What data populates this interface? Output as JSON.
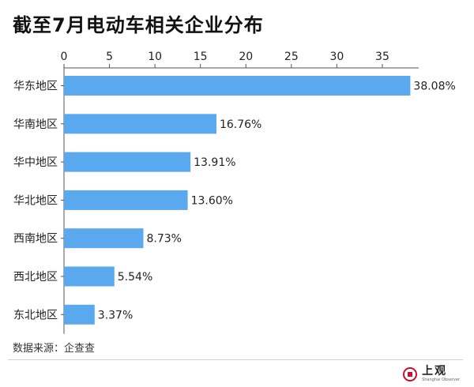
{
  "title": "截至7月电动车相关企业分布",
  "source": "数据来源：企查查",
  "brand": {
    "name": "上观",
    "sub": "Shanghai Observer"
  },
  "colors": {
    "bar": "#5aa9ef",
    "axis": "#555555",
    "text": "#222222",
    "brand": "#c8102e"
  },
  "chart_data": {
    "type": "bar",
    "orientation": "horizontal",
    "x_axis_position": "top",
    "categories": [
      "华东地区",
      "华南地区",
      "华中地区",
      "华北地区",
      "西南地区",
      "西北地区",
      "东北地区"
    ],
    "values": [
      38.08,
      16.76,
      13.91,
      13.6,
      8.73,
      5.54,
      3.37
    ],
    "value_labels": [
      "38.08%",
      "16.76%",
      "13.91%",
      "13.60%",
      "8.73%",
      "5.54%",
      "3.37%"
    ],
    "xlim": [
      0,
      39
    ],
    "xticks": [
      0,
      5,
      10,
      15,
      20,
      25,
      30,
      35
    ],
    "grid": false,
    "legend": "none"
  }
}
